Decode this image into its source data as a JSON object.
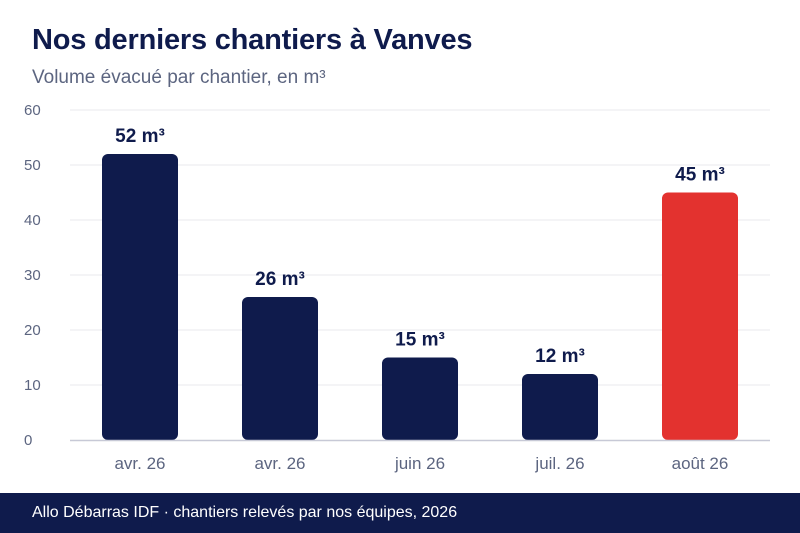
{
  "title": "Nos derniers chantiers à Vanves",
  "subtitle": "Volume évacué par chantier, en m³",
  "footer": "Allo Débarras IDF · chantiers relevés par nos équipes, 2026",
  "colors": {
    "bar": "#0f1b4c",
    "highlight": "#e3322f",
    "grid": "#e8e8ee",
    "axis": "#c7c9d6",
    "tick_label": "#5c6580",
    "data_label": "#0f1b4c"
  },
  "chart_data": {
    "type": "bar",
    "categories": [
      "avr. 26",
      "avr. 26",
      "juin 26",
      "juil. 26",
      "août 26"
    ],
    "values": [
      52,
      26,
      15,
      12,
      45
    ],
    "data_labels": [
      "52 m³",
      "26 m³",
      "15 m³",
      "12 m³",
      "45 m³"
    ],
    "highlight_index": 4,
    "ylim": [
      0,
      60
    ],
    "yticks": [
      0,
      10,
      20,
      30,
      40,
      50,
      60
    ],
    "grid": true,
    "legend": "none"
  }
}
